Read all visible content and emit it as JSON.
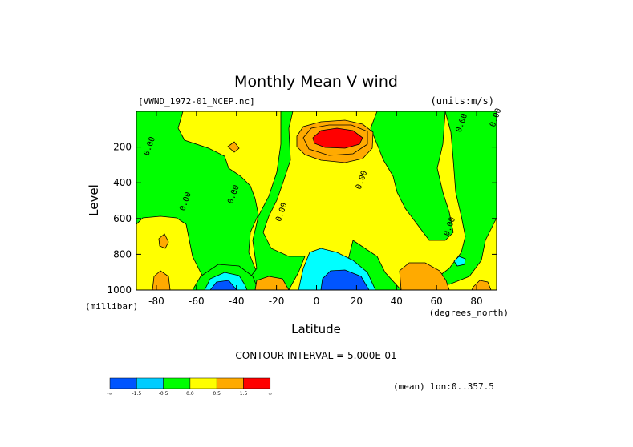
{
  "chart_data": {
    "type": "heatmap",
    "title": "Monthly Mean V wind",
    "dataset_label": "[VWND_1972-01_NCEP.nc]",
    "units_label": "(units:m/s)",
    "xlabel": "Latitude",
    "x_units": "(degrees_north)",
    "ylabel": "Level",
    "y_units": "(millibar)",
    "xlim": [
      -90,
      90
    ],
    "ylim": [
      1000,
      0
    ],
    "x_ticks": [
      -80,
      -60,
      -40,
      -20,
      0,
      20,
      40,
      60,
      80
    ],
    "x_tick_labels": [
      "-80",
      "-60",
      "-40",
      "-20",
      "0",
      "20",
      "40",
      "60",
      "80"
    ],
    "y_ticks": [
      200,
      400,
      600,
      800,
      1000
    ],
    "y_tick_labels": [
      "200",
      "400",
      "600",
      "800",
      "1000"
    ],
    "contour_interval_text": "CONTOUR INTERVAL = 5.000E-01",
    "mean_text": "(mean) lon:0..357.5",
    "contour_labels": [
      {
        "text": "0.00",
        "x": -84,
        "y": 250
      },
      {
        "text": "0.00",
        "x": -66,
        "y": 560
      },
      {
        "text": "0.00",
        "x": -42,
        "y": 520
      },
      {
        "text": "0.00",
        "x": -18,
        "y": 620
      },
      {
        "text": "0.00",
        "x": 22,
        "y": 440
      },
      {
        "text": "0.00",
        "x": 66,
        "y": 700
      },
      {
        "text": "0.00",
        "x": 72,
        "y": 120
      },
      {
        "text": "0.00",
        "x": 89,
        "y": 90
      }
    ],
    "legend": {
      "colors": [
        "#0055ff",
        "#00ccff",
        "#00ff00",
        "#ffff00",
        "#ffaa00",
        "#ff0000"
      ],
      "labels": [
        "-∞",
        "-1.5",
        "-0.5",
        "0.0",
        "0.5",
        "1.5",
        "∞"
      ]
    }
  }
}
